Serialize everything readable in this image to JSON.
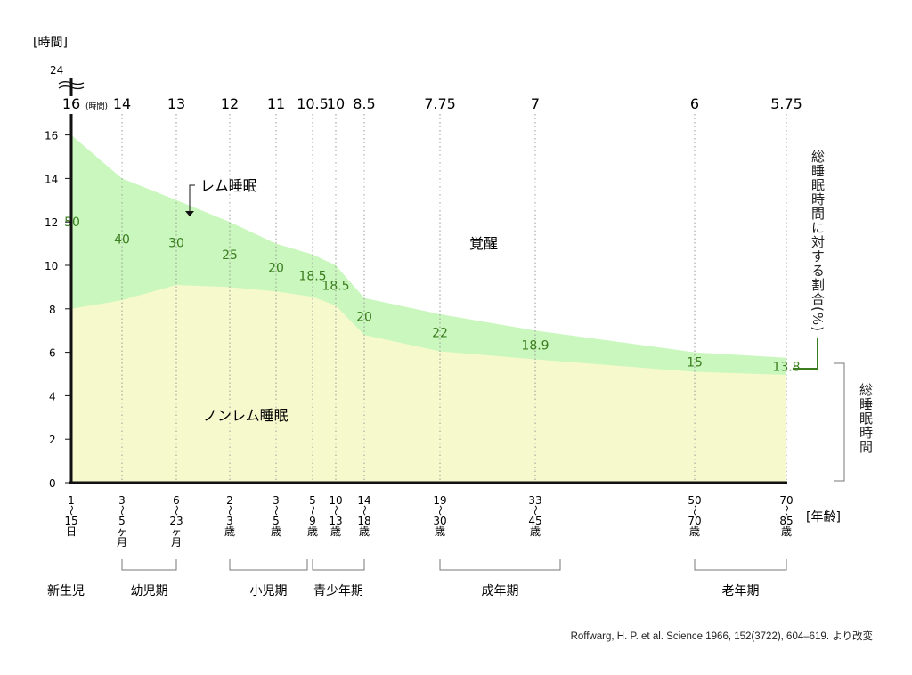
{
  "chart_data": {
    "type": "area",
    "ylabel": "[時間]",
    "xlabel": "[年齢]",
    "y_ticks": [
      0,
      2,
      4,
      6,
      8,
      10,
      12,
      14,
      16
    ],
    "y_break_label": "24",
    "ylim": [
      0,
      16
    ],
    "total_hours_unit": "(時間)",
    "categories": [
      {
        "lines": [
          "1",
          "〜",
          "15",
          "日"
        ],
        "total_sleep": 16,
        "total_label": "16",
        "rem_percent": 50,
        "rem_label": "50"
      },
      {
        "lines": [
          "3",
          "〜",
          "5",
          "ヶ",
          "月"
        ],
        "total_sleep": 14,
        "total_label": "14",
        "rem_percent": 40,
        "rem_label": "40"
      },
      {
        "lines": [
          "6",
          "〜",
          "23",
          "ヶ",
          "月"
        ],
        "total_sleep": 13,
        "total_label": "13",
        "rem_percent": 30,
        "rem_label": "30"
      },
      {
        "lines": [
          "2",
          "〜",
          "3",
          "歳"
        ],
        "total_sleep": 12,
        "total_label": "12",
        "rem_percent": 25,
        "rem_label": "25"
      },
      {
        "lines": [
          "3",
          "〜",
          "5",
          "歳"
        ],
        "total_sleep": 11,
        "total_label": "11",
        "rem_percent": 20,
        "rem_label": "20"
      },
      {
        "lines": [
          "5",
          "〜",
          "9",
          "歳"
        ],
        "total_sleep": 10.5,
        "total_label": "10.5",
        "rem_percent": 18.5,
        "rem_label": "18.5"
      },
      {
        "lines": [
          "10",
          "〜",
          "13",
          "歳"
        ],
        "total_sleep": 10,
        "total_label": "10",
        "rem_percent": 18.5,
        "rem_label": "18.5"
      },
      {
        "lines": [
          "14",
          "〜",
          "18",
          "歳"
        ],
        "total_sleep": 8.5,
        "total_label": "8.5",
        "rem_percent": 20,
        "rem_label": "20"
      },
      {
        "lines": [
          "19",
          "〜",
          "30",
          "歳"
        ],
        "total_sleep": 7.75,
        "total_label": "7.75",
        "rem_percent": 22,
        "rem_label": "22"
      },
      {
        "lines": [
          "33",
          "〜",
          "45",
          "歳"
        ],
        "total_sleep": 7,
        "total_label": "7",
        "rem_percent": 18.9,
        "rem_label": "18.9"
      },
      {
        "lines": [
          "50",
          "〜",
          "70",
          "歳"
        ],
        "total_sleep": 6,
        "total_label": "6",
        "rem_percent": 15,
        "rem_label": "15"
      },
      {
        "lines": [
          "70",
          "〜",
          "85",
          "歳"
        ],
        "total_sleep": 5.75,
        "total_label": "5.75",
        "rem_percent": 13.8,
        "rem_label": "13.8"
      }
    ],
    "periods": [
      {
        "label": "新生児",
        "from": 0,
        "to": 0,
        "bracket": false
      },
      {
        "label": "幼児期",
        "from": 1,
        "to": 2,
        "bracket": true
      },
      {
        "label": "小児期",
        "from": 3,
        "to": 4,
        "bracket": true
      },
      {
        "label": "青少年期",
        "from": 5,
        "to": 7,
        "bracket": true
      },
      {
        "label": "成年期",
        "from": 8,
        "to": 9,
        "bracket": true
      },
      {
        "label": "老年期",
        "from": 10,
        "to": 11,
        "bracket": true
      }
    ],
    "regions": {
      "rem": "レム睡眠",
      "nrem": "ノンレム睡眠",
      "awake": "覚醒"
    },
    "right_labels": {
      "percent": "総睡眠時間に対する割合(%)",
      "total": "総睡眠時間"
    },
    "colors": {
      "rem": "#c9f7bd",
      "nrem": "#f6f9cc",
      "label": "#3b7d1f",
      "axis": "#111111"
    }
  },
  "citation": "Roffwarg, H. P. et al. Science 1966, 152(3722), 604–619. より改変"
}
